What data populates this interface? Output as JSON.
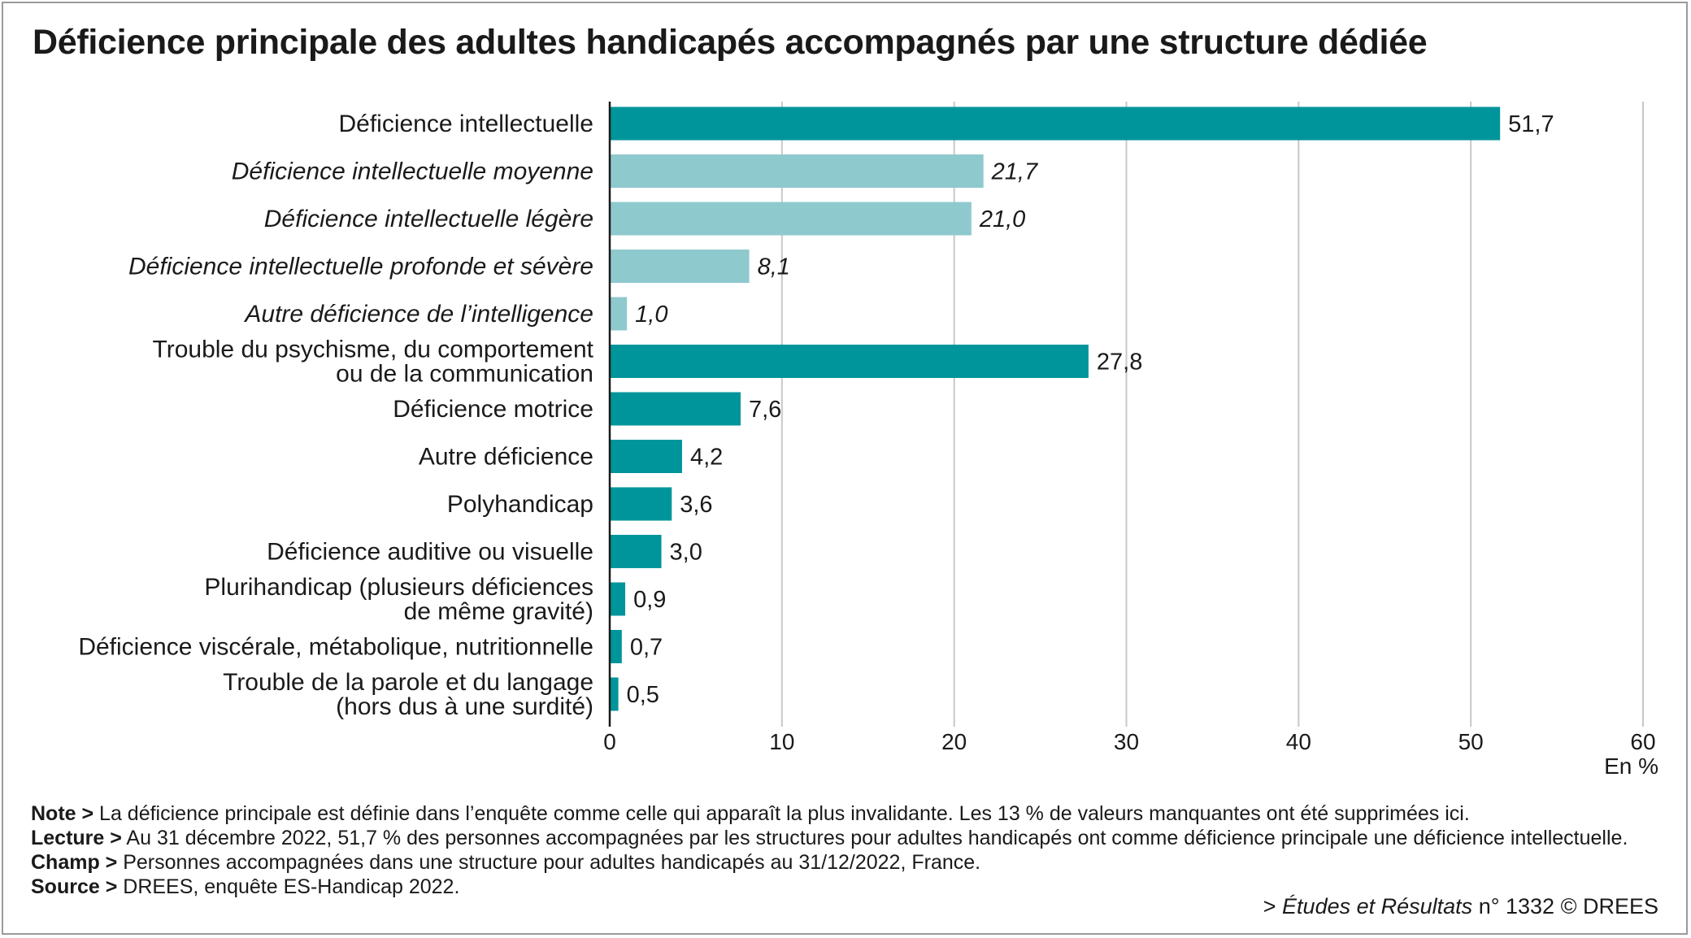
{
  "title": "Déficience principale des adultes handicapés accompagnés par une structure dédiée",
  "chart_data": {
    "type": "bar",
    "orientation": "horizontal",
    "categories": [
      [
        "Déficience intellectuelle"
      ],
      [
        "Déficience intellectuelle moyenne"
      ],
      [
        "Déficience intellectuelle légère"
      ],
      [
        "Déficience intellectuelle profonde et sévère"
      ],
      [
        "Autre déficience de l’intelligence"
      ],
      [
        "Trouble du psychisme, du comportement",
        "ou de la communication"
      ],
      [
        "Déficience motrice"
      ],
      [
        "Autre déficience"
      ],
      [
        "Polyhandicap"
      ],
      [
        "Déficience auditive ou visuelle"
      ],
      [
        "Plurihandicap (plusieurs déficiences",
        "de même gravité)"
      ],
      [
        "Déficience viscérale, métabolique, nutritionnelle"
      ],
      [
        "Trouble de la parole et du langage",
        "(hors dus à une surdité)"
      ]
    ],
    "values": [
      51.7,
      21.7,
      21.0,
      8.1,
      1.0,
      27.8,
      7.6,
      4.2,
      3.6,
      3.0,
      0.9,
      0.7,
      0.5
    ],
    "value_labels": [
      "51,7",
      "21,7",
      "21,0",
      "8,1",
      "1,0",
      "27,8",
      "7,6",
      "4,2",
      "3,6",
      "3,0",
      "0,9",
      "0,7",
      "0,5"
    ],
    "subcategory": [
      false,
      true,
      true,
      true,
      true,
      false,
      false,
      false,
      false,
      false,
      false,
      false,
      false
    ],
    "xlim": [
      0,
      60
    ],
    "xticks": [
      0,
      10,
      20,
      30,
      40,
      50,
      60
    ],
    "xlabel": "En %",
    "grid": "vertical",
    "colors": {
      "main": "#00959B",
      "sub": "#8EC9CE",
      "grid": "#c8c8c8",
      "axis": "#1a1a1a"
    }
  },
  "notes": [
    {
      "label": "Note >",
      "text": " La déficience principale est définie dans l’enquête comme celle qui apparaît la plus invalidante. Les 13 % de valeurs manquantes ont été supprimées ici."
    },
    {
      "label": "Lecture >",
      "text": " Au 31 décembre 2022, 51,7 % des personnes accompagnées par les structures pour adultes handicapés ont comme déficience principale une déficience intellectuelle."
    },
    {
      "label": "Champ >",
      "text": " Personnes accompagnées dans une structure pour adultes handicapés au 31/12/2022, France."
    },
    {
      "label": "Source >",
      "text": " DREES, enquête ES-Handicap 2022."
    }
  ],
  "credit": {
    "prefix": "> ",
    "publication": "Études et Résultats",
    "suffix": " n° 1332 © DREES"
  }
}
